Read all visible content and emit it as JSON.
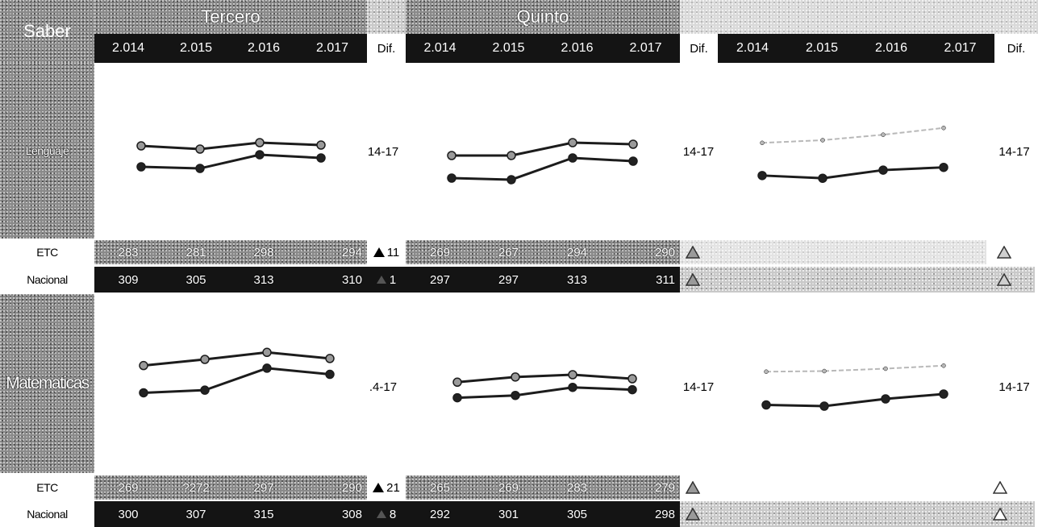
{
  "header": {
    "saber_label": "Saber",
    "grades": [
      "Tercero",
      "Quinto"
    ],
    "years": [
      "2.014",
      "2.015",
      "2.016",
      "2.017"
    ],
    "dif_label": "Dif."
  },
  "subjects": [
    {
      "name": "Lenguaje",
      "range_labels": [
        "14-17",
        "14-17",
        "14-17"
      ],
      "rows": [
        {
          "label": "ETC",
          "tercero": [
            "283",
            "281",
            "298",
            "294"
          ],
          "tercero_dif": "11",
          "quinto": [
            "269",
            "267",
            "294",
            "290"
          ]
        },
        {
          "label": "Nacional",
          "tercero": [
            "309",
            "305",
            "313",
            "310"
          ],
          "tercero_dif": "1",
          "quinto": [
            "297",
            "297",
            "313",
            "311"
          ]
        }
      ]
    },
    {
      "name": "Matematicas",
      "range_labels": [
        ".4-17",
        "14-17",
        "14-17"
      ],
      "rows": [
        {
          "label": "ETC",
          "tercero": [
            "269",
            "?272",
            "297",
            "290"
          ],
          "tercero_dif": "21",
          "quinto": [
            "265",
            "269",
            "283",
            "279"
          ]
        },
        {
          "label": "Nacional",
          "tercero": [
            "300",
            "307",
            "315",
            "308"
          ],
          "tercero_dif": "8",
          "quinto": [
            "292",
            "301",
            "305",
            "298"
          ]
        }
      ]
    }
  ],
  "chart_data": [
    {
      "type": "line",
      "section": "Lenguaje - Tercero",
      "x": [
        "2.014",
        "2.015",
        "2.016",
        "2.017"
      ],
      "series": [
        {
          "values": [
            309,
            305,
            313,
            310
          ]
        },
        {
          "values": [
            283,
            281,
            298,
            294
          ]
        }
      ],
      "ylim": [
        240,
        340
      ]
    },
    {
      "type": "line",
      "section": "Lenguaje - Quinto",
      "x": [
        "2.014",
        "2.015",
        "2.016",
        "2.017"
      ],
      "series": [
        {
          "values": [
            297,
            297,
            313,
            311
          ]
        },
        {
          "values": [
            269,
            267,
            294,
            290
          ]
        }
      ],
      "ylim": [
        240,
        340
      ]
    },
    {
      "type": "line",
      "section": "Lenguaje - third group",
      "x": [
        "2.014",
        "2.015",
        "2.016",
        "2.017"
      ],
      "series": [
        {
          "values": [
            318,
            322,
            330,
            340
          ],
          "style": "faded"
        },
        {
          "values": [
            270,
            266,
            278,
            282
          ]
        }
      ],
      "ylim": [
        220,
        380
      ]
    },
    {
      "type": "line",
      "section": "Matematicas - Tercero",
      "x": [
        "2.014",
        "2.015",
        "2.016",
        "2.017"
      ],
      "series": [
        {
          "values": [
            300,
            307,
            315,
            308
          ]
        },
        {
          "values": [
            269,
            272,
            297,
            290
          ]
        }
      ],
      "ylim": [
        230,
        340
      ]
    },
    {
      "type": "line",
      "section": "Matematicas - Quinto",
      "x": [
        "2.014",
        "2.015",
        "2.016",
        "2.017"
      ],
      "series": [
        {
          "values": [
            292,
            301,
            305,
            298
          ]
        },
        {
          "values": [
            265,
            269,
            283,
            279
          ]
        }
      ],
      "ylim": [
        200,
        340
      ]
    },
    {
      "type": "line",
      "section": "Matematicas - third group",
      "x": [
        "2.014",
        "2.015",
        "2.016",
        "2.017"
      ],
      "series": [
        {
          "values": [
            325,
            326,
            330,
            335
          ],
          "style": "faded"
        },
        {
          "values": [
            270,
            268,
            280,
            288
          ]
        }
      ],
      "ylim": [
        220,
        380
      ]
    }
  ],
  "colors": {
    "dark": "#141414",
    "line": "#1c1c1c",
    "marker": "#222222",
    "light_marker": "#9a9a9a",
    "faded_line": "#b8b8b8"
  },
  "icons": {
    "delta": "triangle-icon"
  }
}
